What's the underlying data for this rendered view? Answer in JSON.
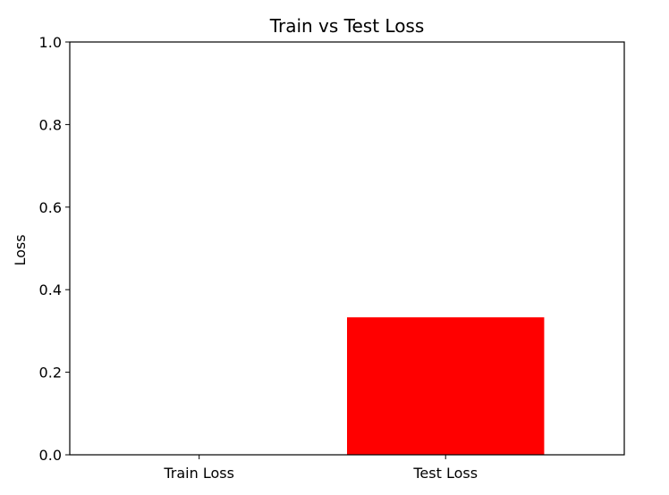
{
  "chart_data": {
    "type": "bar",
    "title": "Train vs Test Loss",
    "xlabel": "",
    "ylabel": "Loss",
    "categories": [
      "Train Loss",
      "Test Loss"
    ],
    "values": [
      0.0,
      0.333
    ],
    "colors": [
      "#1f77b4",
      "#ff0000"
    ],
    "ylim": [
      0,
      1
    ],
    "yticks": [
      0.0,
      0.2,
      0.4,
      0.6,
      0.8,
      1.0
    ],
    "ytick_labels": [
      "0.0",
      "0.2",
      "0.4",
      "0.6",
      "0.8",
      "1.0"
    ],
    "grid": false,
    "legend": null
  }
}
